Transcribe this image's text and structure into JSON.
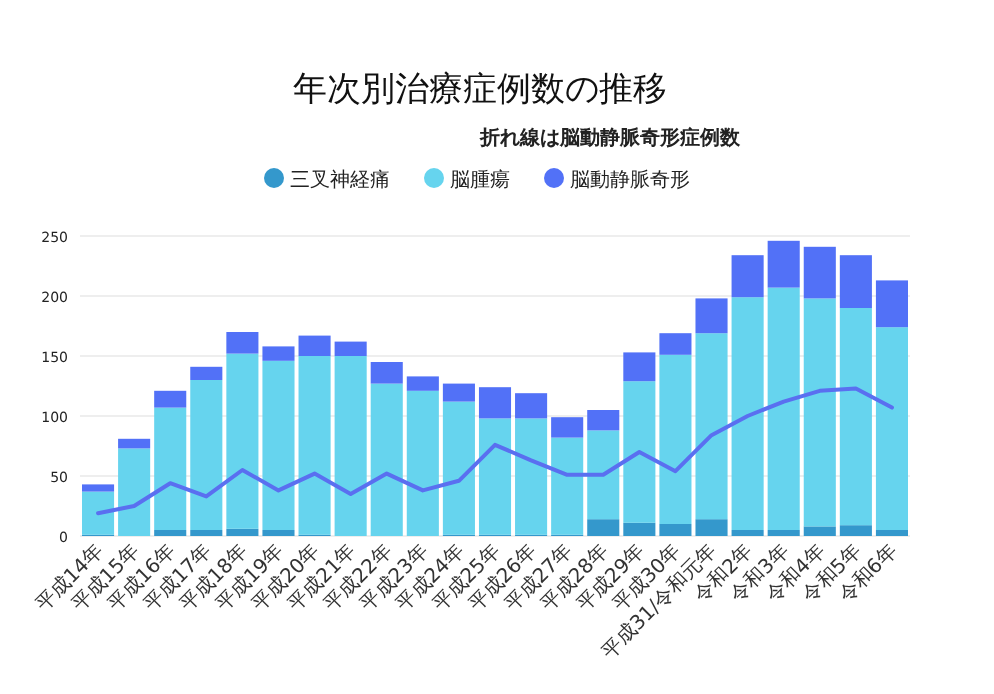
{
  "chart_data": {
    "type": "bar",
    "stacked": true,
    "title": "年次別治療症例数の推移",
    "subtitle": "折れ線は脳動静脈奇形症例数",
    "categories": [
      "平成14年",
      "平成15年",
      "平成16年",
      "平成17年",
      "平成18年",
      "平成19年",
      "平成20年",
      "平成21年",
      "平成22年",
      "平成23年",
      "平成24年",
      "平成25年",
      "平成26年",
      "平成27年",
      "平成28年",
      "平成29年",
      "平成30年",
      "平成31/令和元年",
      "令和2年",
      "令和3年",
      "令和4年",
      "令和5年",
      "令和6年"
    ],
    "series": [
      {
        "name": "三叉神経痛",
        "color": "#3498cc",
        "values": [
          1,
          0,
          5,
          5,
          6,
          5,
          1,
          0,
          0,
          0,
          1,
          1,
          1,
          1,
          14,
          11,
          10,
          14,
          5,
          5,
          8,
          9,
          5
        ]
      },
      {
        "name": "脳腫瘍",
        "color": "#66d4ee",
        "values": [
          36,
          73,
          102,
          125,
          146,
          141,
          149,
          150,
          127,
          121,
          111,
          97,
          97,
          81,
          74,
          118,
          141,
          155,
          194,
          202,
          190,
          181,
          169
        ]
      },
      {
        "name": "脳動静脈奇形",
        "color": "#5271f7",
        "values": [
          6,
          8,
          14,
          11,
          18,
          12,
          17,
          12,
          18,
          12,
          15,
          26,
          21,
          17,
          17,
          24,
          18,
          29,
          35,
          39,
          43,
          44,
          39
        ]
      },
      {
        "type": "line",
        "color": "#5a6ff0",
        "values": [
          19,
          25,
          44,
          33,
          55,
          38,
          52,
          35,
          52,
          38,
          46,
          76,
          63,
          51,
          51,
          70,
          54,
          84,
          100,
          112,
          121,
          123,
          107
        ]
      }
    ],
    "ylim": [
      0,
      250
    ],
    "yticks": [
      0,
      50,
      100,
      150,
      200,
      250
    ],
    "grid": "y",
    "legend": "top"
  }
}
